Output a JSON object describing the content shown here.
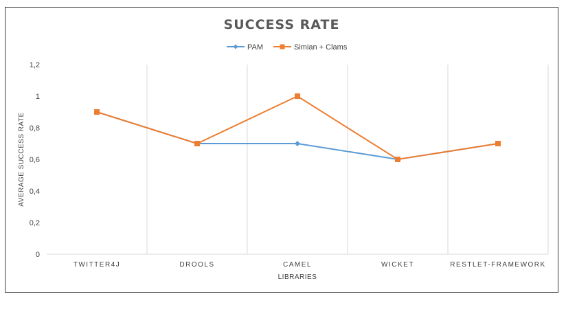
{
  "chart_data": {
    "type": "line",
    "title": "SUCCESS RATE",
    "xlabel": "LIBRARIES",
    "ylabel": "AVERAGE SUCCESS RATE",
    "categories": [
      "TWITTER4J",
      "DROOLS",
      "CAMEL",
      "WICKET",
      "RESTLET-FRAMEWORK"
    ],
    "ylim": [
      0,
      1.2
    ],
    "yticks": [
      "0",
      "0,2",
      "0,4",
      "0,6",
      "0,8",
      "1",
      "1,2"
    ],
    "ytick_values": [
      0,
      0.2,
      0.4,
      0.6,
      0.8,
      1.0,
      1.2
    ],
    "grid": "vertical",
    "legend_position": "top",
    "series": [
      {
        "name": "PAM",
        "values": [
          0.9,
          0.7,
          0.7,
          0.6,
          0.7
        ],
        "color": "#5b9bd5",
        "marker": "diamond"
      },
      {
        "name": "Simian + Clams",
        "values": [
          0.9,
          0.7,
          1.0,
          0.6,
          0.7
        ],
        "color": "#ed7d31",
        "marker": "square"
      }
    ]
  }
}
